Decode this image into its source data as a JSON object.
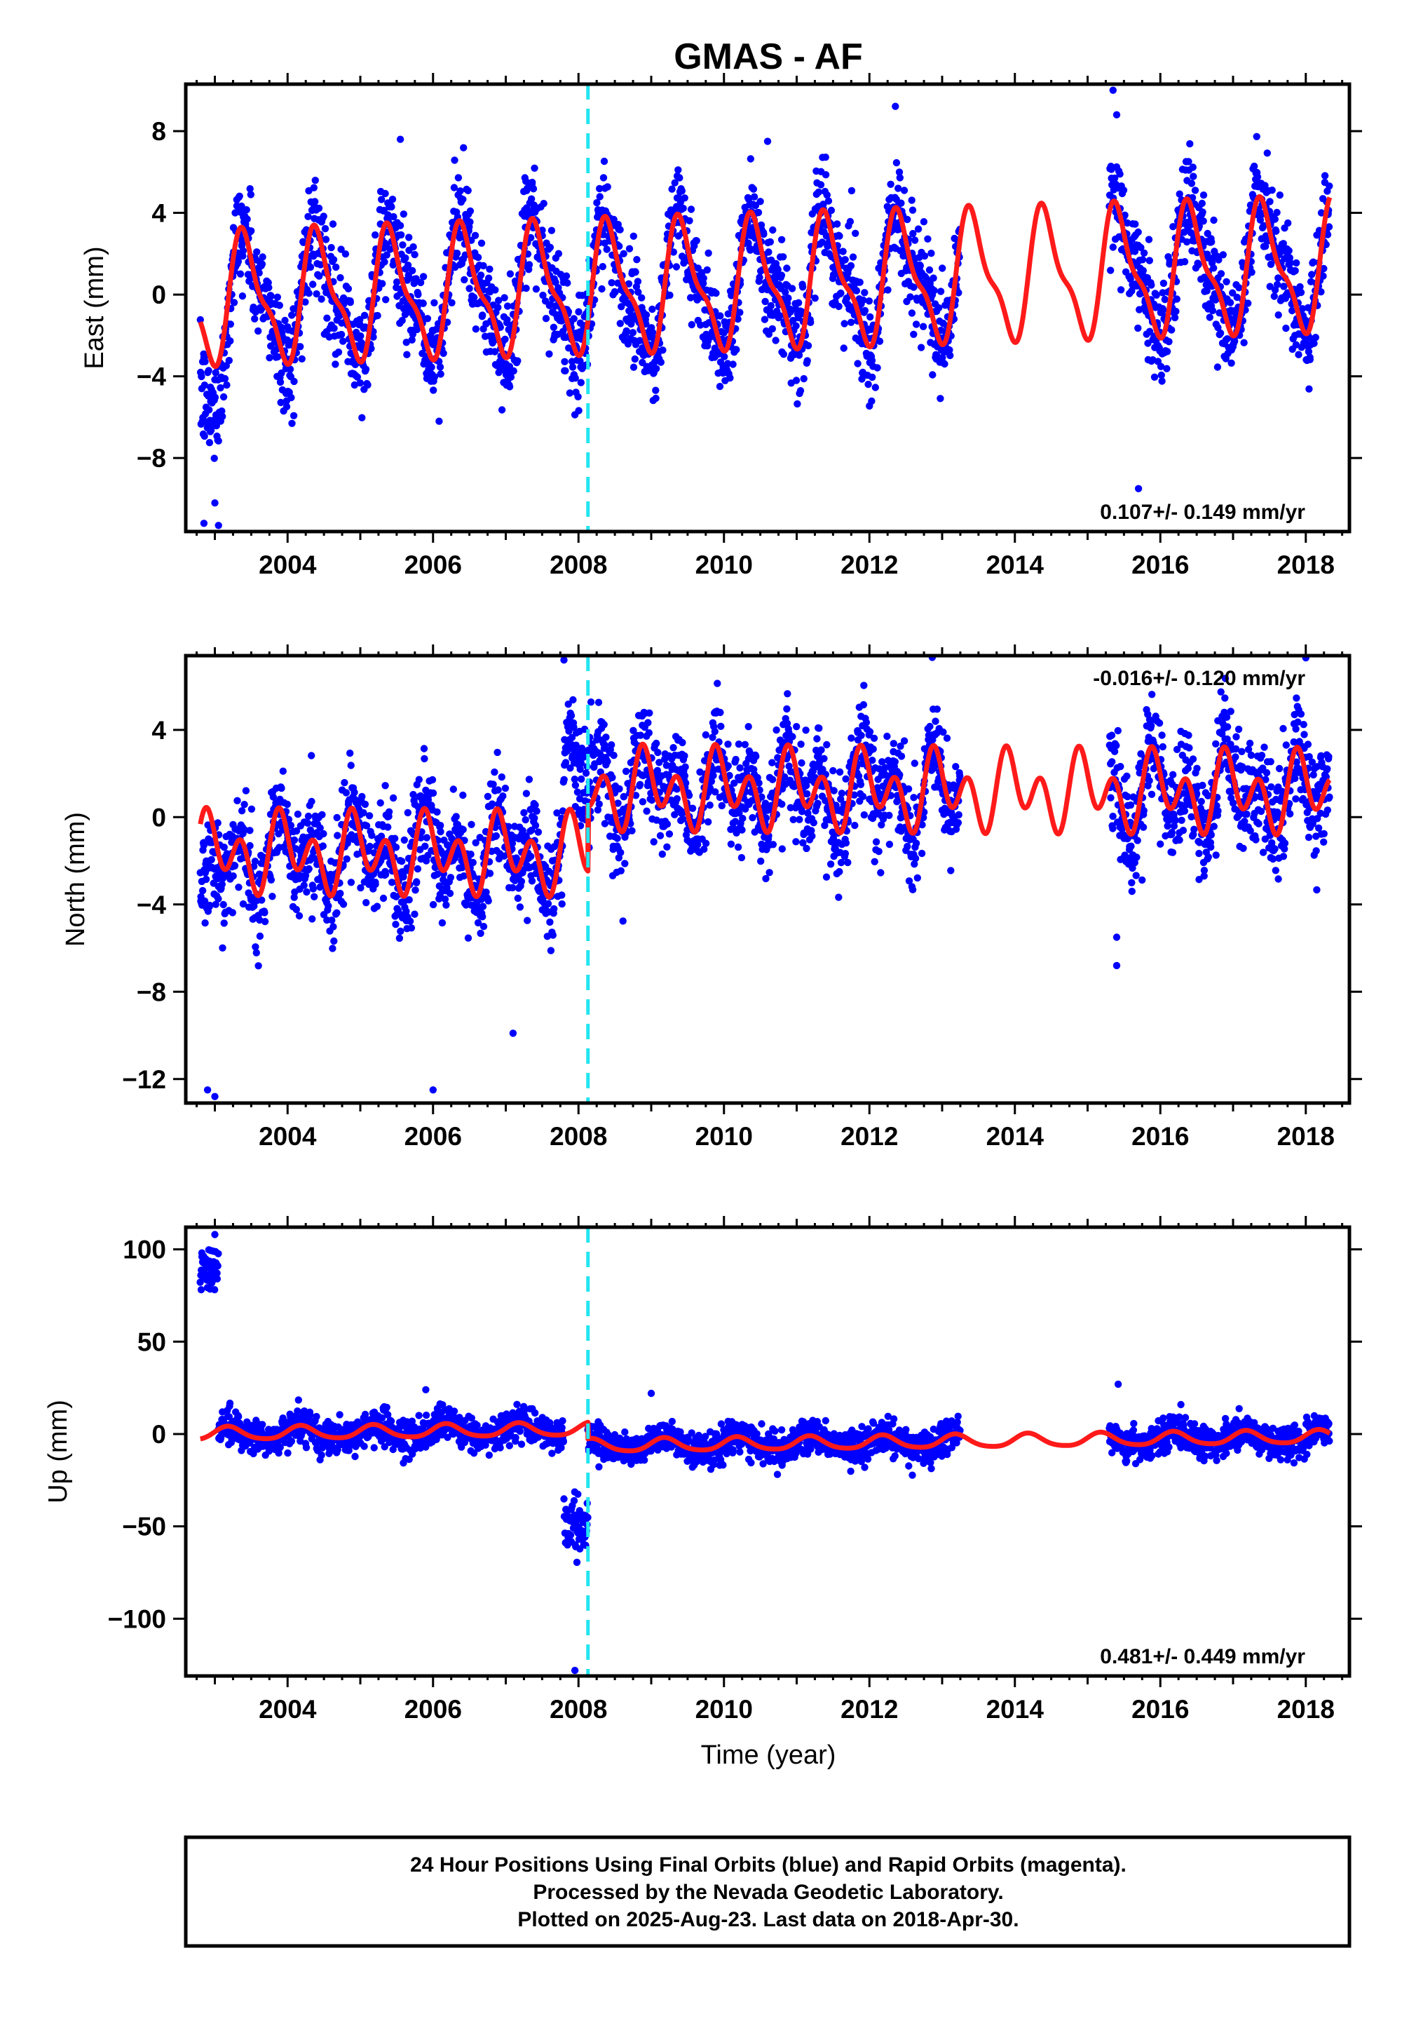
{
  "title": "GMAS - AF",
  "colors": {
    "points": "#0000ff",
    "model": "#ff1a1a",
    "break": "#22e5f0",
    "frame": "#000000"
  },
  "chart_data": [
    {
      "type": "scatter",
      "panel": "east",
      "ylabel": "East (mm)",
      "xlim": [
        2002.6,
        2018.6
      ],
      "ylim": [
        -11.6,
        10.3
      ],
      "x_ticks": [
        2004,
        2006,
        2008,
        2010,
        2012,
        2014,
        2016,
        2018
      ],
      "y_ticks": [
        -8,
        -4,
        0,
        4,
        8
      ],
      "rate": "0.107+/- 0.149 mm/yr",
      "rate_position": "bottom-right",
      "break_year": 2008.13,
      "data_gap": [
        2013.25,
        2015.3
      ],
      "series": [
        {
          "name": "Final Orbits (blue)",
          "kind": "points",
          "spans": [
            [
              2002.8,
              2013.25
            ],
            [
              2015.3,
              2018.33
            ]
          ],
          "seasonal_amplitude": 3.2,
          "seasonal_peak_month": "June",
          "scatter_sd": 1.3,
          "outliers": [
            [
              2002.85,
              -11.2
            ],
            [
              2003.05,
              -11.3
            ],
            [
              2003.0,
              -10.2
            ],
            [
              2015.35,
              10.0
            ],
            [
              2015.4,
              8.8
            ],
            [
              2015.7,
              -9.5
            ],
            [
              2005.55,
              7.6
            ],
            [
              2010.6,
              7.5
            ]
          ]
        },
        {
          "name": "model",
          "kind": "line",
          "trend_mm_per_yr": 0.107,
          "offset_at_2002_8": -0.3,
          "break_offset": 0,
          "annual": [
            1.3,
            -2.58
          ],
          "semiannual": [
            -0.78,
            -0.66
          ]
        }
      ]
    },
    {
      "type": "scatter",
      "panel": "north",
      "ylabel": "North (mm)",
      "xlim": [
        2002.6,
        2018.6
      ],
      "ylim": [
        -13.1,
        7.4
      ],
      "x_ticks": [
        2004,
        2006,
        2008,
        2010,
        2012,
        2014,
        2016,
        2018
      ],
      "y_ticks": [
        -12,
        -8,
        -4,
        0,
        4
      ],
      "rate": "-0.016+/- 0.120 mm/yr",
      "rate_position": "top-right",
      "break_year": 2008.13,
      "data_gap": [
        2013.25,
        2015.3
      ],
      "series": [
        {
          "name": "Final Orbits (blue)",
          "kind": "points",
          "spans": [
            [
              2002.8,
              2013.25
            ],
            [
              2015.3,
              2018.33
            ]
          ],
          "scatter_sd": 1.2,
          "outliers": [
            [
              2002.9,
              -12.5
            ],
            [
              2003.0,
              -12.8
            ],
            [
              2006.0,
              -12.5
            ],
            [
              2007.1,
              -9.9
            ],
            [
              2007.8,
              7.2
            ],
            [
              2015.4,
              -6.8
            ],
            [
              2015.4,
              -5.5
            ],
            [
              2018.0,
              7.3
            ]
          ]
        },
        {
          "name": "model",
          "kind": "line",
          "trend_mm_per_yr": -0.016,
          "offset_at_2002_8": -1.63,
          "break_offset": 3.0,
          "annual": [
            -0.15,
            0.94
          ],
          "semiannual": [
            -1.3,
            -0.14
          ]
        }
      ]
    },
    {
      "type": "scatter",
      "panel": "up",
      "ylabel": "Up (mm)",
      "xlabel": "Time (year)",
      "xlim": [
        2002.6,
        2018.6
      ],
      "ylim": [
        -131,
        112
      ],
      "x_ticks": [
        2004,
        2006,
        2008,
        2010,
        2012,
        2014,
        2016,
        2018
      ],
      "y_ticks": [
        -100,
        -50,
        0,
        50,
        100
      ],
      "rate": "0.481+/- 0.449 mm/yr",
      "rate_position": "bottom-right",
      "break_year": 2008.13,
      "data_gap": [
        2013.25,
        2015.3
      ],
      "series": [
        {
          "name": "Final Orbits (blue)",
          "kind": "points",
          "spans": [
            [
              2002.8,
              2013.25
            ],
            [
              2015.3,
              2018.33
            ]
          ],
          "scatter_sd": 4.5,
          "clusters": [
            {
              "x": [
                2002.8,
                2003.05
              ],
              "y_mean": 90,
              "y_sd": 6
            },
            {
              "x": [
                2007.8,
                2008.13
              ],
              "y_mean": -50,
              "y_sd": 8
            }
          ],
          "outliers": [
            [
              2007.95,
              -128
            ],
            [
              2003.0,
              108
            ],
            [
              2009.0,
              22
            ],
            [
              2015.42,
              27
            ],
            [
              2005.9,
              24
            ]
          ]
        },
        {
          "name": "model",
          "kind": "line",
          "trend_mm_per_yr": 0.481,
          "offset_at_2002_8": 0,
          "break_offset": -9,
          "annual": [
            3.2,
            1.4
          ],
          "semiannual": [
            0.5,
            -0.3
          ]
        }
      ]
    }
  ],
  "footer": {
    "lines": [
      "24 Hour Positions Using Final Orbits (blue) and Rapid Orbits (magenta).",
      "Processed by the Nevada Geodetic Laboratory.",
      "Plotted on 2025-Aug-23. Last data on 2018-Apr-30."
    ]
  }
}
